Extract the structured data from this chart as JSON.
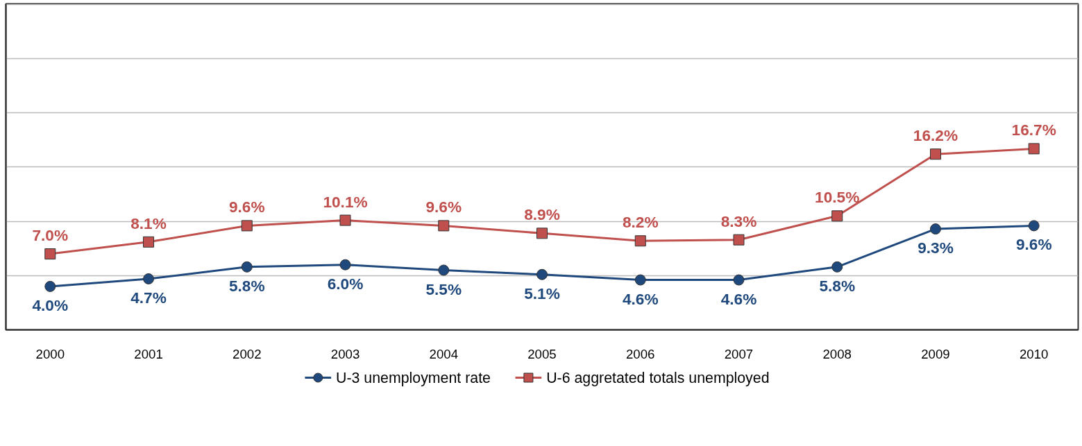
{
  "chart_data": {
    "type": "line",
    "categories": [
      "2000",
      "2001",
      "2002",
      "2003",
      "2004",
      "2005",
      "2006",
      "2007",
      "2008",
      "2009",
      "2010"
    ],
    "series": [
      {
        "name": "U-3 unemployment rate",
        "color": "#1f497d",
        "marker": "circle",
        "values": [
          4.0,
          4.7,
          5.8,
          6.0,
          5.5,
          5.1,
          4.6,
          4.6,
          5.8,
          9.3,
          9.6
        ],
        "value_labels": [
          "4.0%",
          "4.7%",
          "5.8%",
          "6.0%",
          "5.5%",
          "5.1%",
          "4.6%",
          "4.6%",
          "5.8%",
          "9.3%",
          "9.6%"
        ]
      },
      {
        "name": "U-6 aggretated totals unemployed",
        "color": "#c0504d",
        "marker": "square",
        "values": [
          7.0,
          8.1,
          9.6,
          10.1,
          9.6,
          8.9,
          8.2,
          8.3,
          10.5,
          16.2,
          16.7
        ],
        "value_labels": [
          "7.0%",
          "8.1%",
          "9.6%",
          "10.1%",
          "9.6%",
          "8.9%",
          "8.2%",
          "8.3%",
          "10.5%",
          "16.2%",
          "16.7%"
        ]
      }
    ],
    "tick_labels": "x",
    "grid": "y",
    "legend": "bottom",
    "line_style": "solid"
  }
}
